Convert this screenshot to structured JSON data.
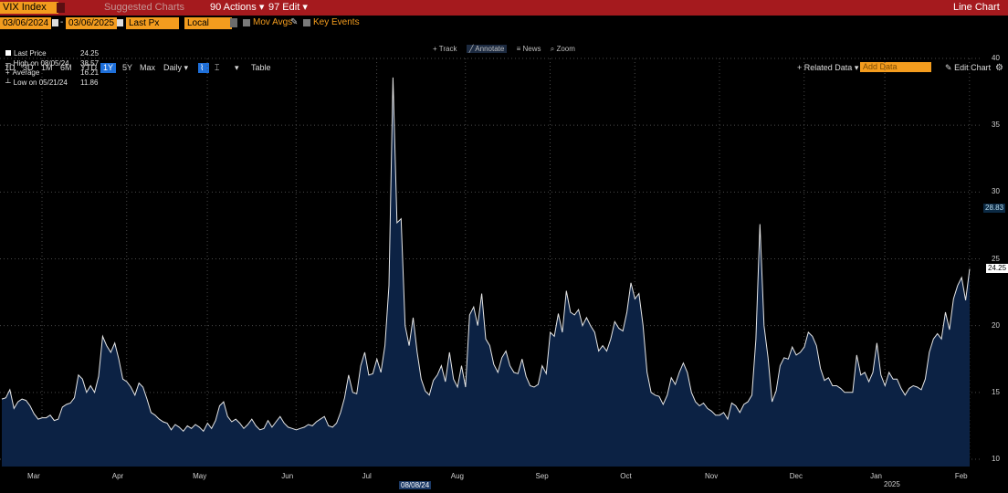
{
  "toolbar": {
    "ticker": "VIX Index",
    "suggested_charts": "Suggested Charts",
    "actions": "90 Actions",
    "edit": "97 Edit",
    "chart_kind": "Line Chart"
  },
  "controls": {
    "start_date": "03/06/2024",
    "date_sep": "-",
    "end_date": "03/06/2025",
    "field": "Last Px",
    "currency": "Local CCY",
    "mov_avgs": "Mov Avgs",
    "key_events": "Key Events"
  },
  "periods": {
    "items": [
      "1D",
      "3D",
      "1M",
      "6M",
      "YTD",
      "1Y",
      "5Y",
      "Max"
    ],
    "active": "1Y",
    "frequency": "Daily",
    "table": "Table"
  },
  "right_tools": {
    "related_data": "+ Related Data",
    "add_data_placeholder": "Add Data",
    "edit_chart": "Edit Chart"
  },
  "tools": {
    "track": "Track",
    "annotate": "Annotate",
    "news": "News",
    "zoom": "Zoom"
  },
  "legend": {
    "last_label": "Last Price",
    "last_value": "24.25",
    "high_label": "High on 08/05/24",
    "high_value": "38.57",
    "avg_label": "Average",
    "avg_value": "16.21",
    "low_label": "Low on 05/21/24",
    "low_value": "11.86"
  },
  "badges": {
    "prev": "28.83",
    "last": "24.25"
  },
  "year_label": "2025",
  "hover_date": "08/08/24",
  "colors": {
    "line": "#e6e6e6",
    "fill": "#0c2244",
    "header": "#a51a1e",
    "accent": "#f39c1e"
  },
  "chart_data": {
    "type": "area",
    "ylim": [
      10,
      40
    ],
    "yticks": [
      10,
      15,
      20,
      25,
      30,
      35,
      40
    ],
    "x_month_labels": [
      "Mar",
      "Apr",
      "May",
      "Jun",
      "Jul",
      "Aug",
      "Sep",
      "Oct",
      "Nov",
      "Dec",
      "Jan",
      "Feb"
    ],
    "x_month_positions": [
      0,
      21,
      41,
      63,
      83,
      105,
      126,
      147,
      168,
      189,
      209,
      230
    ],
    "values": [
      14.5,
      14.6,
      15.2,
      13.8,
      14.3,
      14.5,
      14.4,
      14.0,
      13.4,
      13.0,
      13.1,
      13.1,
      13.3,
      12.9,
      13.0,
      13.9,
      14.1,
      14.2,
      14.6,
      16.3,
      16.0,
      15.0,
      15.5,
      15.0,
      16.2,
      19.2,
      18.5,
      18.0,
      18.7,
      17.5,
      16.0,
      15.8,
      15.4,
      14.8,
      15.7,
      15.4,
      14.5,
      13.5,
      13.3,
      13.0,
      12.8,
      12.7,
      12.2,
      12.6,
      12.4,
      12.1,
      12.5,
      12.3,
      12.6,
      12.4,
      12.1,
      12.7,
      12.3,
      12.9,
      14.0,
      14.3,
      13.2,
      12.8,
      13.0,
      12.7,
      12.3,
      12.6,
      13.0,
      12.5,
      12.2,
      12.3,
      12.9,
      12.4,
      12.8,
      13.2,
      12.7,
      12.4,
      12.3,
      12.2,
      12.3,
      12.4,
      12.6,
      12.5,
      12.8,
      13.0,
      13.2,
      12.5,
      12.4,
      12.7,
      13.5,
      14.6,
      16.3,
      15.0,
      14.9,
      17.0,
      18.0,
      16.3,
      16.4,
      17.5,
      16.5,
      18.5,
      23.0,
      38.57,
      27.7,
      28.0,
      20.0,
      18.5,
      20.6,
      18.0,
      16.0,
      15.1,
      14.8,
      15.9,
      16.3,
      17.0,
      15.8,
      18.0,
      16.0,
      15.4,
      17.0,
      15.4,
      20.8,
      21.4,
      20.0,
      22.4,
      19.0,
      18.5,
      17.1,
      16.5,
      17.6,
      18.1,
      17.0,
      16.5,
      16.4,
      17.5,
      16.2,
      15.5,
      15.4,
      15.6,
      17.0,
      16.4,
      19.5,
      19.2,
      20.9,
      19.5,
      22.6,
      21.0,
      20.8,
      21.2,
      20.0,
      20.6,
      20.0,
      19.5,
      18.1,
      18.5,
      18.1,
      19.0,
      20.3,
      19.8,
      19.6,
      21.0,
      23.2,
      22.0,
      22.4,
      20.0,
      16.5,
      15.0,
      14.8,
      14.7,
      14.1,
      14.8,
      16.1,
      15.6,
      16.5,
      17.2,
      16.5,
      15.0,
      14.3,
      14.0,
      14.2,
      13.8,
      13.6,
      13.3,
      13.3,
      13.5,
      13.0,
      14.2,
      14.0,
      13.5,
      14.1,
      14.3,
      14.8,
      19.0,
      27.6,
      20.0,
      17.6,
      14.3,
      15.1,
      17.0,
      17.6,
      17.5,
      18.4,
      17.8,
      18.0,
      18.4,
      19.5,
      19.2,
      18.5,
      16.8,
      15.9,
      16.1,
      15.5,
      15.5,
      15.3,
      15.0,
      15.0,
      15.0,
      17.8,
      16.3,
      16.5,
      15.8,
      16.5,
      18.7,
      16.3,
      15.5,
      16.5,
      16.0,
      16.0,
      15.3,
      14.8,
      15.3,
      15.5,
      15.4,
      15.2,
      16.0,
      18.0,
      19.0,
      19.4,
      19.0,
      21.0,
      19.7,
      22.0,
      23.0,
      23.6,
      21.9,
      24.25
    ]
  }
}
